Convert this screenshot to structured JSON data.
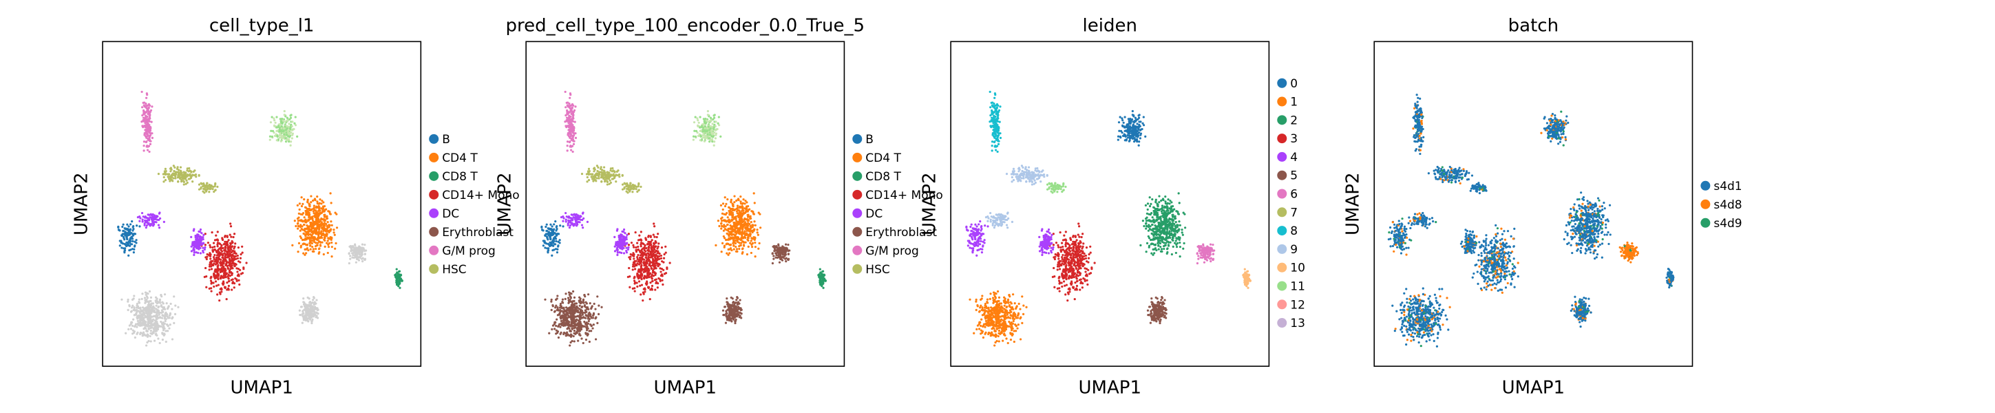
{
  "chart_data": [
    {
      "type": "scatter",
      "title": "cell_type_l1",
      "xlabel": "UMAP1",
      "ylabel": "UMAP2",
      "grid": false,
      "ticks": false,
      "legend_placement": "right",
      "legend": [
        {
          "label": "B",
          "color": "#1f77b4"
        },
        {
          "label": "CD4 T",
          "color": "#ff7f0e"
        },
        {
          "label": "CD8 T",
          "color": "#279e68"
        },
        {
          "label": "CD14+ Mono",
          "color": "#d62728"
        },
        {
          "label": "DC",
          "color": "#aa40fc"
        },
        {
          "label": "Erythroblast",
          "color": "#8c564b"
        },
        {
          "label": "G/M prog",
          "color": "#e377c2"
        },
        {
          "label": "HSC",
          "color": "#b5bd61"
        }
      ]
    },
    {
      "type": "scatter",
      "title": "pred_cell_type_100_encoder_0.0_True_5",
      "xlabel": "UMAP1",
      "ylabel": "UMAP2",
      "grid": false,
      "ticks": false,
      "legend_placement": "right",
      "legend": [
        {
          "label": "B",
          "color": "#1f77b4"
        },
        {
          "label": "CD4 T",
          "color": "#ff7f0e"
        },
        {
          "label": "CD8 T",
          "color": "#279e68"
        },
        {
          "label": "CD14+ Mono",
          "color": "#d62728"
        },
        {
          "label": "DC",
          "color": "#aa40fc"
        },
        {
          "label": "Erythroblast",
          "color": "#8c564b"
        },
        {
          "label": "G/M prog",
          "color": "#e377c2"
        },
        {
          "label": "HSC",
          "color": "#b5bd61"
        }
      ]
    },
    {
      "type": "scatter",
      "title": "leiden",
      "xlabel": "UMAP1",
      "ylabel": "UMAP2",
      "grid": false,
      "ticks": false,
      "legend_placement": "right",
      "legend": [
        {
          "label": "0",
          "color": "#1f77b4"
        },
        {
          "label": "1",
          "color": "#ff7f0e"
        },
        {
          "label": "2",
          "color": "#279e68"
        },
        {
          "label": "3",
          "color": "#d62728"
        },
        {
          "label": "4",
          "color": "#aa40fc"
        },
        {
          "label": "5",
          "color": "#8c564b"
        },
        {
          "label": "6",
          "color": "#e377c2"
        },
        {
          "label": "7",
          "color": "#b5bd61"
        },
        {
          "label": "8",
          "color": "#17becf"
        },
        {
          "label": "9",
          "color": "#aec7e8"
        },
        {
          "label": "10",
          "color": "#ffbb78"
        },
        {
          "label": "11",
          "color": "#98df8a"
        },
        {
          "label": "12",
          "color": "#ff9896"
        },
        {
          "label": "13",
          "color": "#c5b0d5"
        }
      ]
    },
    {
      "type": "scatter",
      "title": "batch",
      "xlabel": "UMAP1",
      "ylabel": "UMAP2",
      "grid": false,
      "ticks": false,
      "legend_placement": "right",
      "legend": [
        {
          "label": "s4d1",
          "color": "#1f77b4"
        },
        {
          "label": "s4d8",
          "color": "#ff7f0e"
        },
        {
          "label": "s4d9",
          "color": "#279e68"
        }
      ]
    }
  ]
}
